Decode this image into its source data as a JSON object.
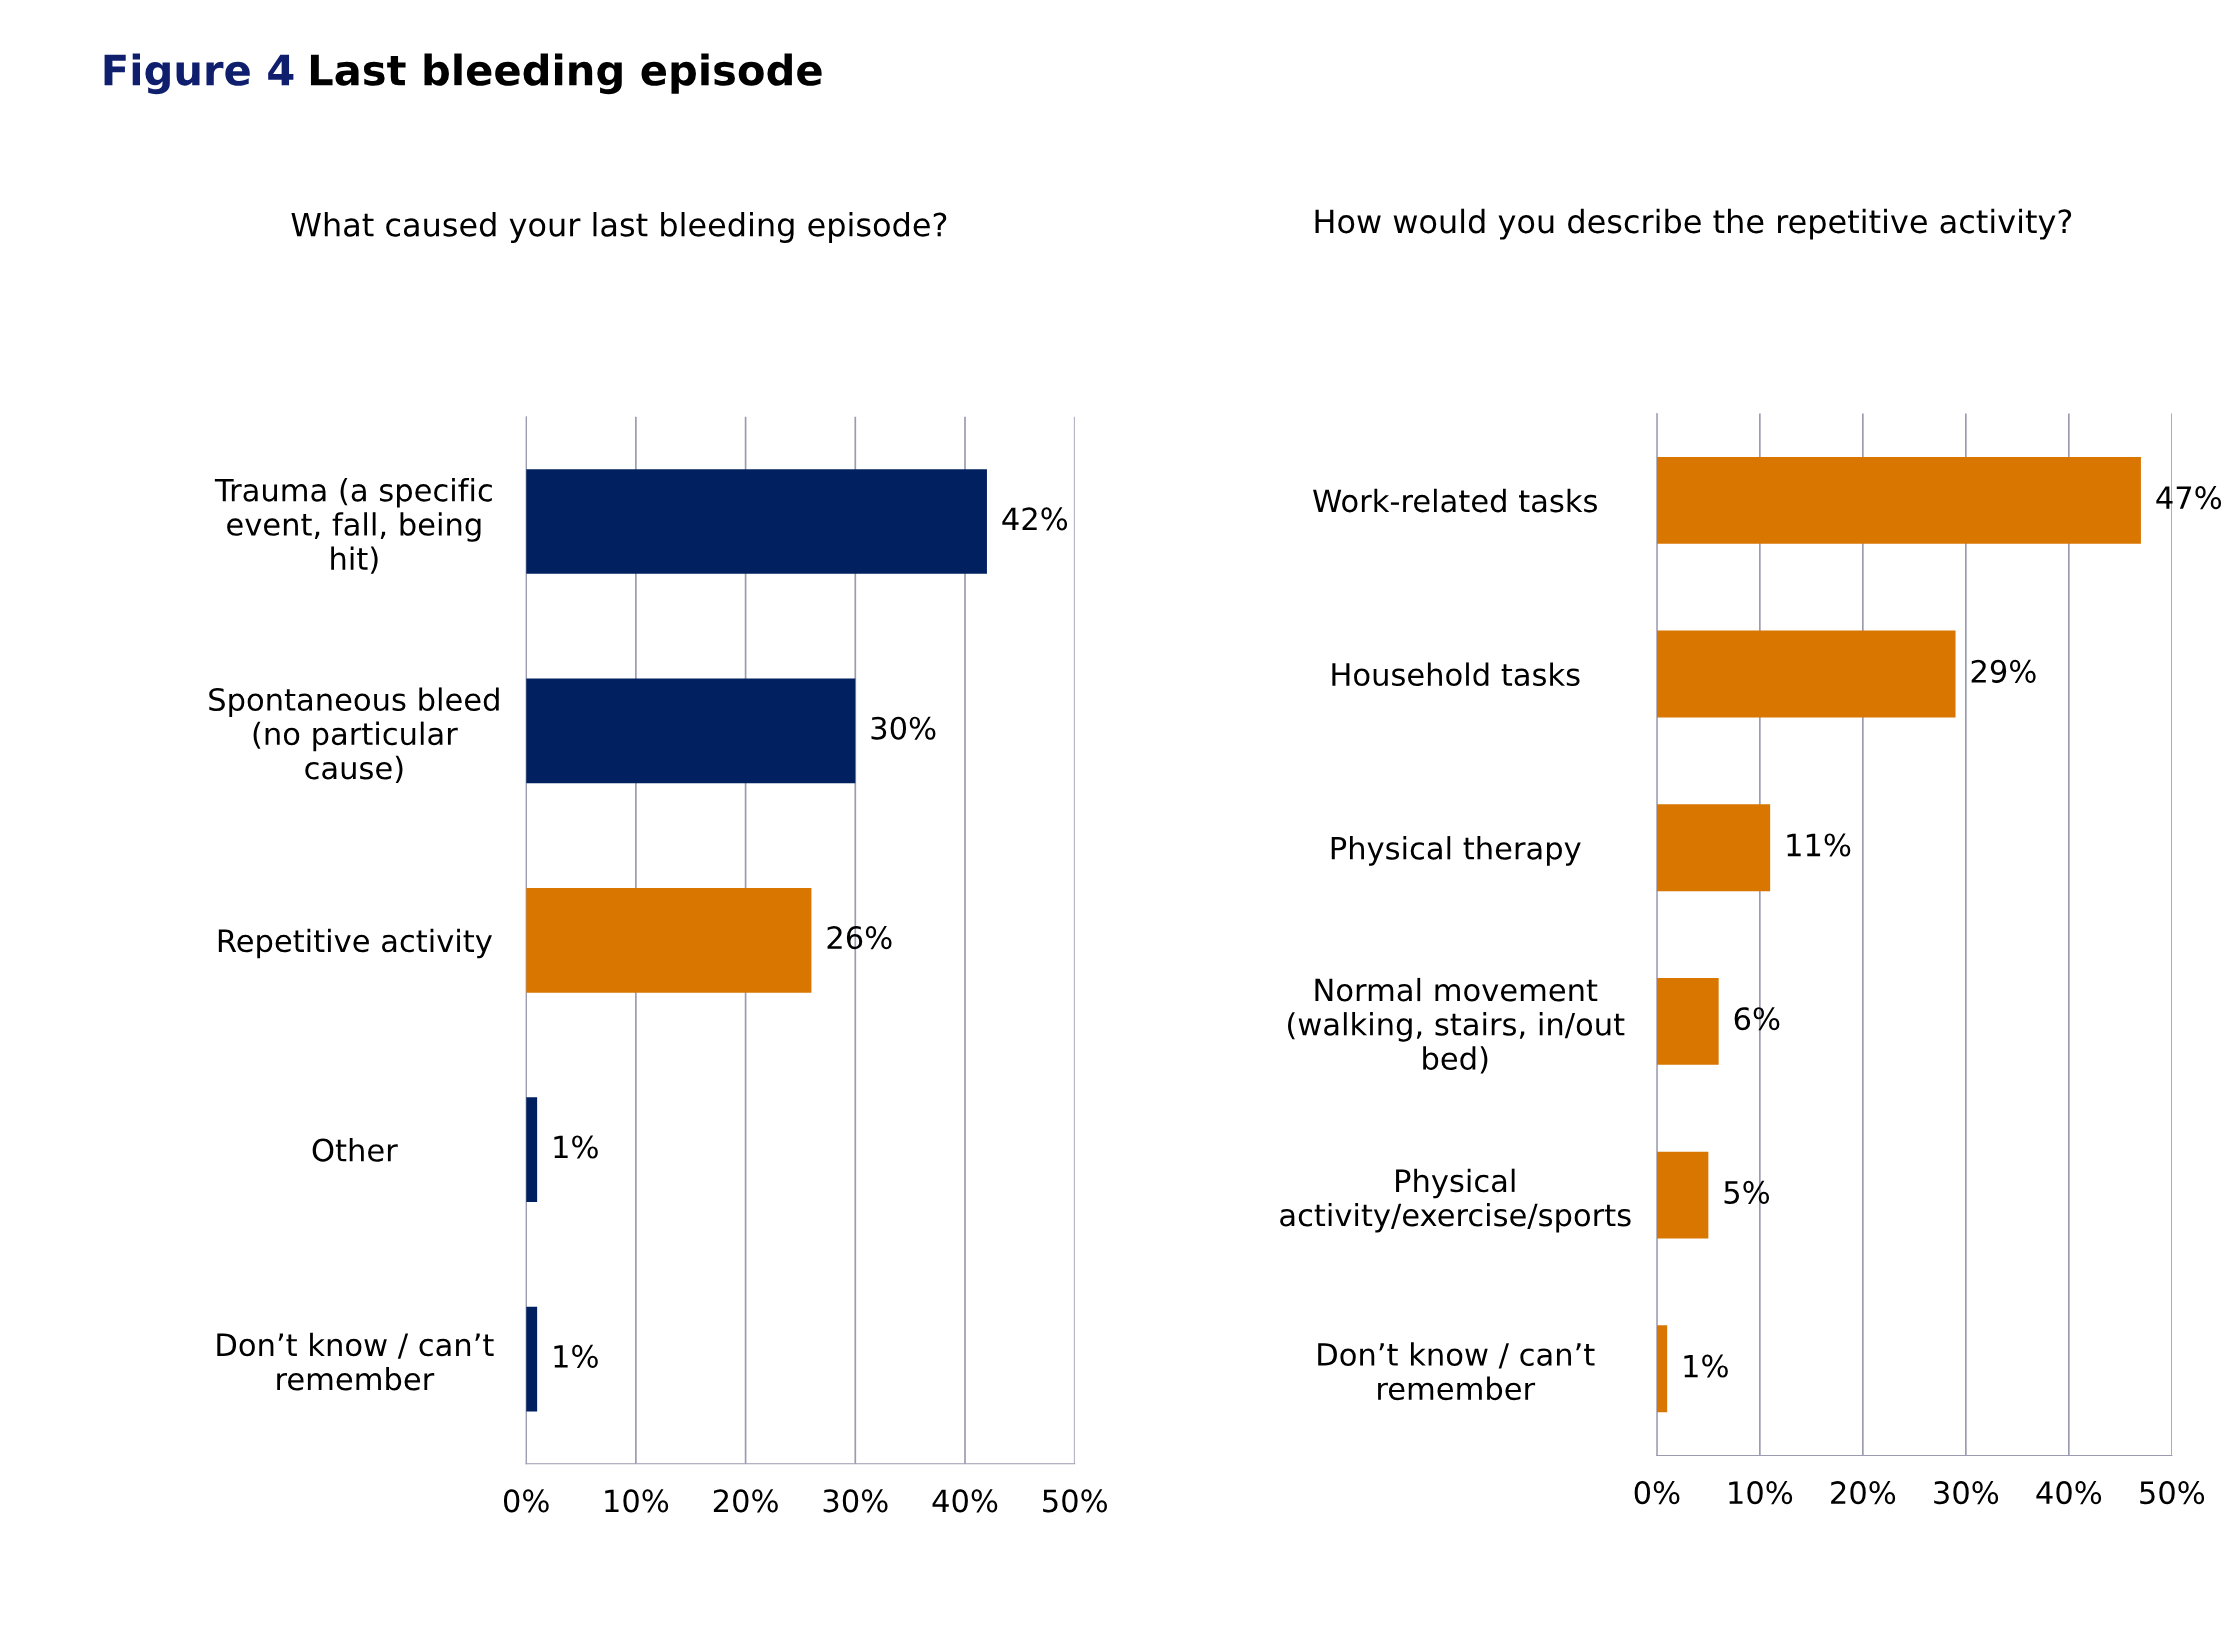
{
  "chart_data": [
    {
      "type": "bar",
      "orientation": "horizontal",
      "title": "What caused your last bleeding episode?",
      "annotations": [
        "Figure 4",
        "Last bleeding episode"
      ],
      "categories": [
        "Trauma (a specific\nevent, fall, being\nhit)",
        "Spontaneous bleed\n(no particular\ncause)",
        "Repetitive activity",
        "Other",
        "Don’t know / can’t\nremember"
      ],
      "values": [
        42,
        30,
        26,
        1,
        1
      ],
      "value_labels": [
        "42%",
        "30%",
        "26%",
        "1%",
        "1%"
      ],
      "colors": [
        "#002060",
        "#002060",
        "#d97600",
        "#002060",
        "#002060"
      ],
      "xlim": [
        0,
        50
      ],
      "xticks": [
        {
          "value": 0,
          "label": "0%"
        },
        {
          "value": 10,
          "label": "10%"
        },
        {
          "value": 20,
          "label": "20%"
        },
        {
          "value": 30,
          "label": "30%"
        },
        {
          "value": 40,
          "label": "40%"
        },
        {
          "value": 50,
          "label": "50%"
        }
      ],
      "grid": "x"
    },
    {
      "type": "bar",
      "orientation": "horizontal",
      "title": "How would you describe the repetitive activity?",
      "categories": [
        "Work-related tasks",
        "Household tasks",
        "Physical therapy",
        "Normal movement\n(walking, stairs, in/out\nbed)",
        "Physical\nactivity/exercise/sports",
        "Don’t know / can’t\nremember"
      ],
      "values": [
        47,
        29,
        11,
        6,
        5,
        1
      ],
      "value_labels": [
        "47%",
        "29%",
        "11%",
        "6%",
        "5%",
        "1%"
      ],
      "colors": [
        "#d97600",
        "#d97600",
        "#d97600",
        "#d97600",
        "#d97600",
        "#d97600"
      ],
      "xlim": [
        0,
        50
      ],
      "xticks": [
        {
          "value": 0,
          "label": "0%"
        },
        {
          "value": 10,
          "label": "10%"
        },
        {
          "value": 20,
          "label": "20%"
        },
        {
          "value": 30,
          "label": "30%"
        },
        {
          "value": 40,
          "label": "40%"
        },
        {
          "value": 50,
          "label": "50%"
        }
      ],
      "grid": "x"
    }
  ]
}
